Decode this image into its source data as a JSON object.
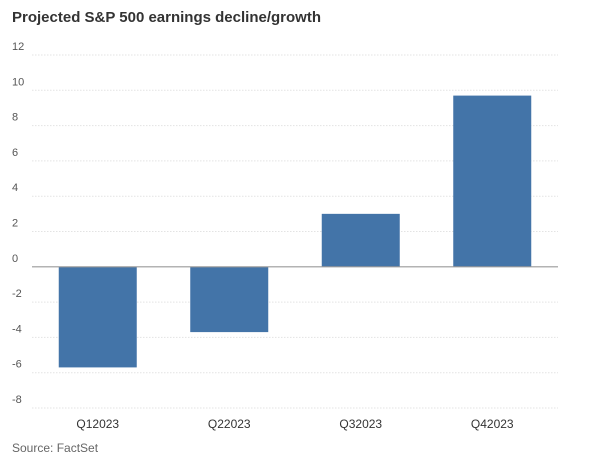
{
  "chart_data": {
    "type": "bar",
    "title": "Projected S&P 500 earnings decline/growth",
    "categories": [
      "Q12023",
      "Q22023",
      "Q32023",
      "Q42023"
    ],
    "values": [
      -5.7,
      -3.7,
      3.0,
      9.7
    ],
    "ylim": [
      -8,
      12
    ],
    "yticks": [
      -8,
      -6,
      -4,
      -2,
      0,
      2,
      4,
      6,
      8,
      10,
      12
    ],
    "ytick_labels": [
      "-8",
      "-6",
      "-4",
      "-2",
      "0",
      "2",
      "4",
      "6",
      "8",
      "10",
      "12"
    ],
    "xlabel": "",
    "ylabel": "",
    "grid": "horizontal",
    "legend": "none",
    "bar_color": "#4374a8",
    "source": "Source: FactSet"
  }
}
